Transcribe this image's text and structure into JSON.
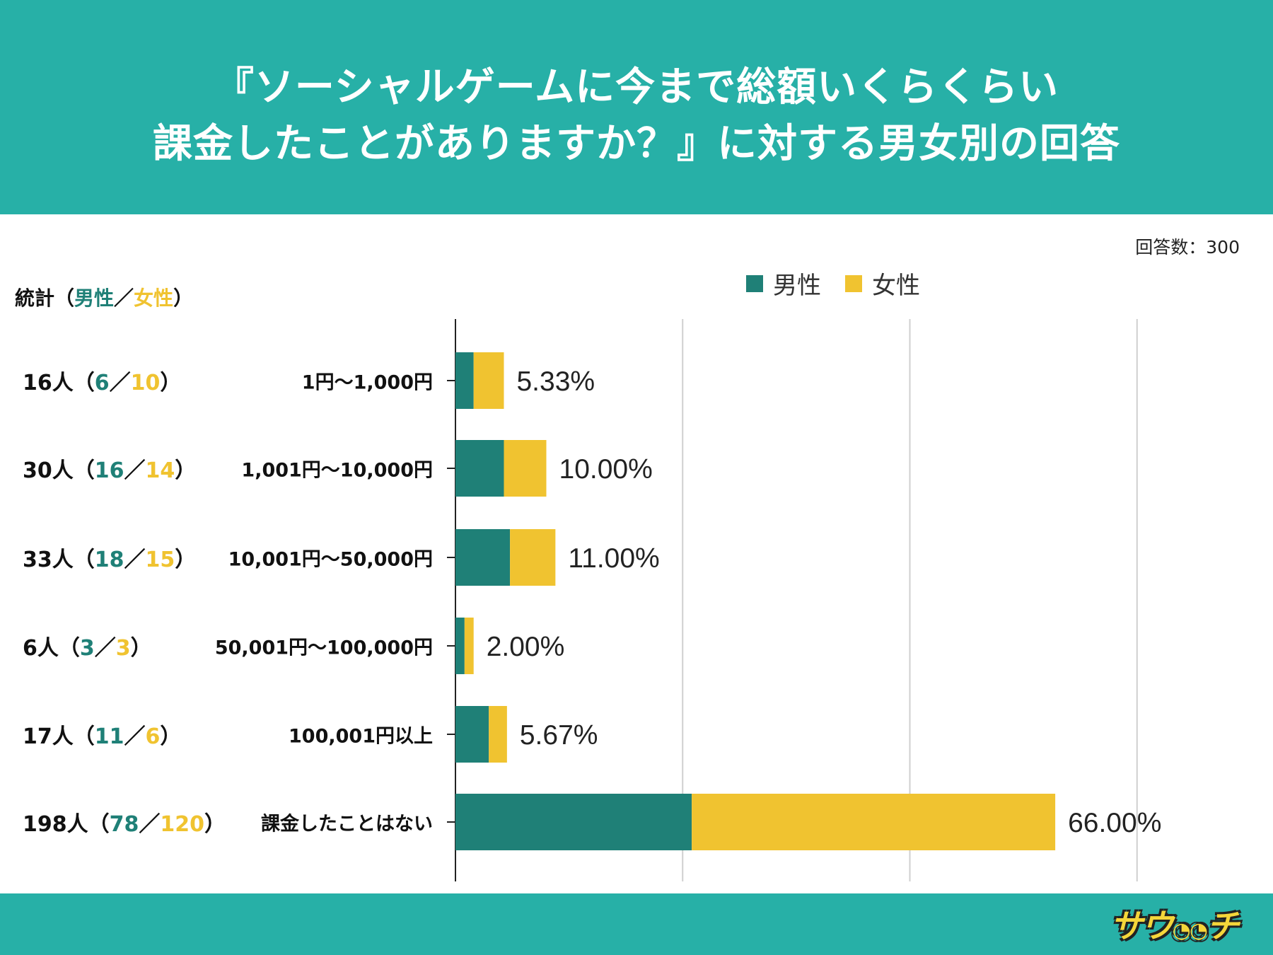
{
  "header": {
    "title_line1": "『ソーシャルゲームに今まで総額いくらくらい",
    "title_line2": "課金したことがありますか？』に対する男女別の回答"
  },
  "respondents": "回答数：300",
  "stats_header": {
    "prefix": "統計（",
    "male": "男性",
    "sep": "／",
    "female": "女性",
    "suffix": "）"
  },
  "logo_text": "サウチ",
  "colors": {
    "header": "#27b0a7",
    "male": "#1f8077",
    "female": "#f0c330"
  },
  "chart_data": {
    "type": "bar",
    "orientation": "horizontal",
    "stacked": true,
    "categories": [
      "1円〜1,000円",
      "1,001円〜10,000円",
      "10,001円〜50,000円",
      "50,001円〜100,000円",
      "100,001円以上",
      "課金したことはない"
    ],
    "series": [
      {
        "name": "男性",
        "values": [
          2.0,
          5.33,
          6.0,
          1.0,
          3.67,
          26.0
        ]
      },
      {
        "name": "女性",
        "values": [
          3.33,
          4.67,
          5.0,
          1.0,
          2.0,
          40.0
        ]
      }
    ],
    "data_labels": [
      "5.33%",
      "10.00%",
      "11.00%",
      "2.00%",
      "5.67%",
      "66.00%"
    ],
    "stats": [
      {
        "total": "16人",
        "male": "6",
        "female": "10"
      },
      {
        "total": "30人",
        "male": "16",
        "female": "14"
      },
      {
        "total": "33人",
        "male": "18",
        "female": "15"
      },
      {
        "total": "6人",
        "male": "3",
        "female": "3"
      },
      {
        "total": "17人",
        "male": "11",
        "female": "6"
      },
      {
        "total": "198人",
        "male": "78",
        "female": "120"
      }
    ],
    "xlim": [
      0,
      75
    ],
    "gridlines": [
      25,
      50,
      75
    ],
    "grid": true,
    "legend_position": "top"
  }
}
